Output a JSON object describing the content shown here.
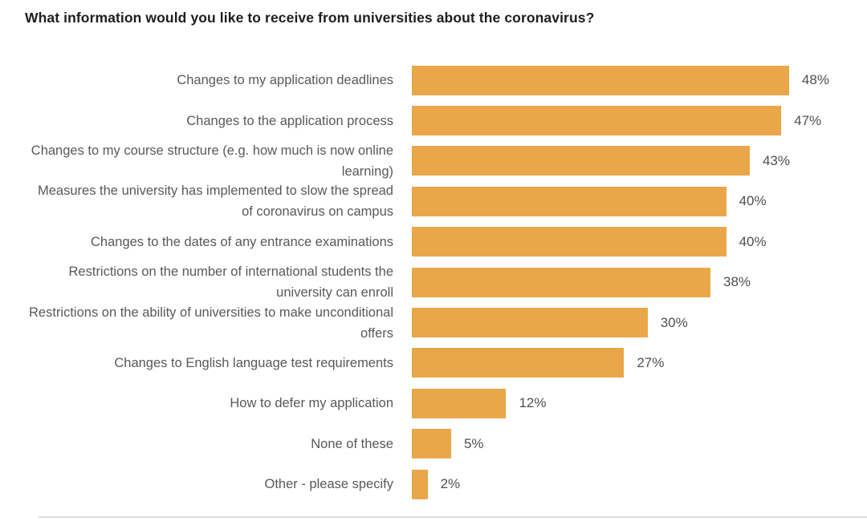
{
  "title": "What information would you like to receive from universities about the coronavirus?",
  "colors": {
    "bar": "#E9A74A",
    "title_text": "#1E1E1E",
    "category_text": "#595959",
    "value_text": "#4F4F4F",
    "divider": "#DCDCDC",
    "background": "#FFFFFF"
  },
  "chart_data": {
    "type": "bar",
    "orientation": "horizontal",
    "title": "What information would you like to receive from universities about the coronavirus?",
    "categories": [
      "Changes to my application deadlines",
      "Changes to the application process",
      "Changes to my course structure (e.g. how much is now online learning)",
      "Measures the university has implemented to slow the spread of coronavirus on campus",
      "Changes to the dates of any entrance examinations",
      "Restrictions on the number of international students the university can enroll",
      "Restrictions on the ability of universities to make unconditional offers",
      "Changes to English language test requirements",
      "How to defer my application",
      "None of these",
      "Other - please specify"
    ],
    "values": [
      48,
      47,
      43,
      40,
      40,
      38,
      30,
      27,
      12,
      5,
      2
    ],
    "data_labels": [
      "48%",
      "47%",
      "43%",
      "40%",
      "40%",
      "38%",
      "30%",
      "27%",
      "12%",
      "5%",
      "2%"
    ],
    "unit": "%",
    "xlim": [
      0,
      48
    ],
    "axes_hidden": true,
    "gridlines": false,
    "legend_position": "none",
    "bar_color": "#E9A74A",
    "pixels_per_percent": 9.79
  }
}
